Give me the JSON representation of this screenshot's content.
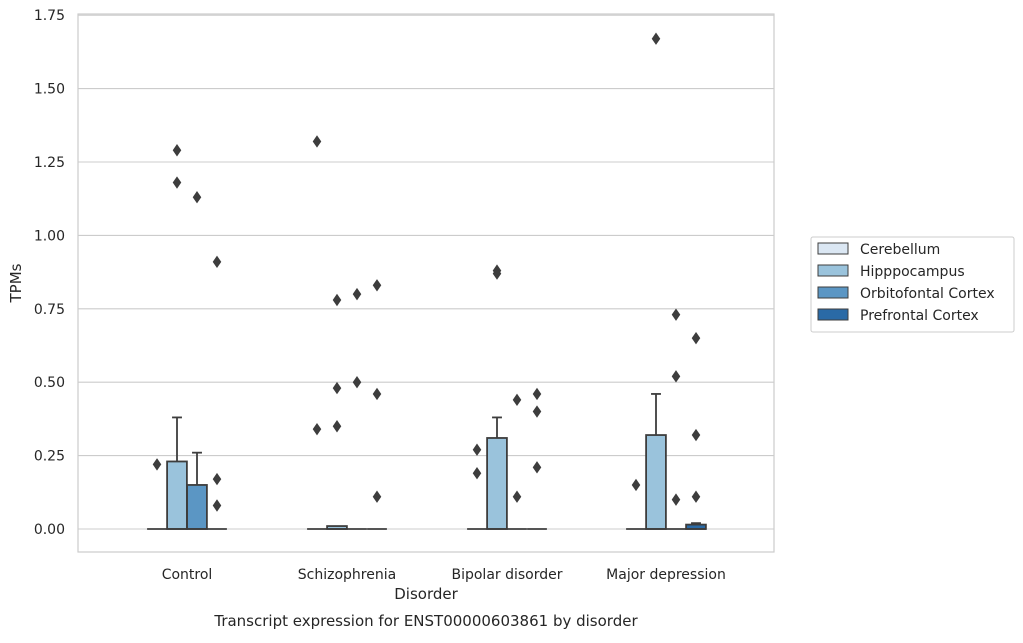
{
  "chart_data": {
    "type": "boxplot",
    "title": "",
    "caption": "Transcript expression for ENST00000603861 by disorder",
    "xlabel": "Disorder",
    "ylabel": "TPMs",
    "ylim": [
      -0.08,
      1.76
    ],
    "yticks": [
      0.0,
      0.25,
      0.5,
      0.75,
      1.0,
      1.25,
      1.5,
      1.75
    ],
    "ytick_labels": [
      "0.00",
      "0.25",
      "0.50",
      "0.75",
      "1.00",
      "1.25",
      "1.50",
      "1.75"
    ],
    "grid": "horizontal",
    "legend_position": "right",
    "categories": [
      "Control",
      "Schizophrenia",
      "Bipolar disorder",
      "Major depression"
    ],
    "series": [
      {
        "name": "Cerebellum",
        "color": "#dbe7f3",
        "boxes": [
          {
            "q1": 0,
            "median": 0,
            "q3": 0,
            "whisker_low": 0,
            "whisker_high": 0,
            "outliers": [
              0.22
            ]
          },
          {
            "q1": 0,
            "median": 0,
            "q3": 0,
            "whisker_low": 0,
            "whisker_high": 0,
            "outliers": [
              1.32,
              0.34
            ]
          },
          {
            "q1": 0,
            "median": 0,
            "q3": 0,
            "whisker_low": 0,
            "whisker_high": 0,
            "outliers": [
              0.27,
              0.19
            ]
          },
          {
            "q1": 0,
            "median": 0,
            "q3": 0,
            "whisker_low": 0,
            "whisker_high": 0,
            "outliers": [
              0.15
            ]
          }
        ]
      },
      {
        "name": "Hipppocampus",
        "color": "#9ac3dc",
        "boxes": [
          {
            "q1": 0,
            "median": 0,
            "q3": 0.23,
            "whisker_low": 0,
            "whisker_high": 0.38,
            "outliers": [
              1.29,
              1.18
            ]
          },
          {
            "q1": 0,
            "median": 0,
            "q3": 0.01,
            "whisker_low": 0,
            "whisker_high": 0.01,
            "outliers": [
              0.78,
              0.48,
              0.35
            ]
          },
          {
            "q1": 0,
            "median": 0,
            "q3": 0.31,
            "whisker_low": 0,
            "whisker_high": 0.38,
            "outliers": [
              0.88,
              0.87
            ]
          },
          {
            "q1": 0,
            "median": 0,
            "q3": 0.32,
            "whisker_low": 0,
            "whisker_high": 0.46,
            "outliers": [
              1.67
            ]
          }
        ]
      },
      {
        "name": "Orbitofontal Cortex",
        "color": "#5b96c4",
        "boxes": [
          {
            "q1": 0,
            "median": 0,
            "q3": 0.15,
            "whisker_low": 0,
            "whisker_high": 0.26,
            "outliers": [
              1.13
            ]
          },
          {
            "q1": 0,
            "median": 0,
            "q3": 0,
            "whisker_low": 0,
            "whisker_high": 0,
            "outliers": [
              0.8,
              0.5
            ]
          },
          {
            "q1": 0,
            "median": 0,
            "q3": 0,
            "whisker_low": 0,
            "whisker_high": 0,
            "outliers": [
              0.44,
              0.11
            ]
          },
          {
            "q1": 0,
            "median": 0,
            "q3": 0,
            "whisker_low": 0,
            "whisker_high": 0,
            "outliers": [
              0.73,
              0.52,
              0.1
            ]
          }
        ]
      },
      {
        "name": "Prefrontal Cortex",
        "color": "#2a6aa6",
        "boxes": [
          {
            "q1": 0,
            "median": 0,
            "q3": 0,
            "whisker_low": 0,
            "whisker_high": 0,
            "outliers": [
              0.91,
              0.17,
              0.08
            ]
          },
          {
            "q1": 0,
            "median": 0,
            "q3": 0,
            "whisker_low": 0,
            "whisker_high": 0,
            "outliers": [
              0.83,
              0.46,
              0.11
            ]
          },
          {
            "q1": 0,
            "median": 0,
            "q3": 0,
            "whisker_low": 0,
            "whisker_high": 0,
            "outliers": [
              0.46,
              0.4,
              0.21
            ]
          },
          {
            "q1": 0,
            "median": 0,
            "q3": 0.015,
            "whisker_low": 0,
            "whisker_high": 0.02,
            "outliers": [
              0.65,
              0.32,
              0.11
            ]
          }
        ]
      }
    ]
  }
}
